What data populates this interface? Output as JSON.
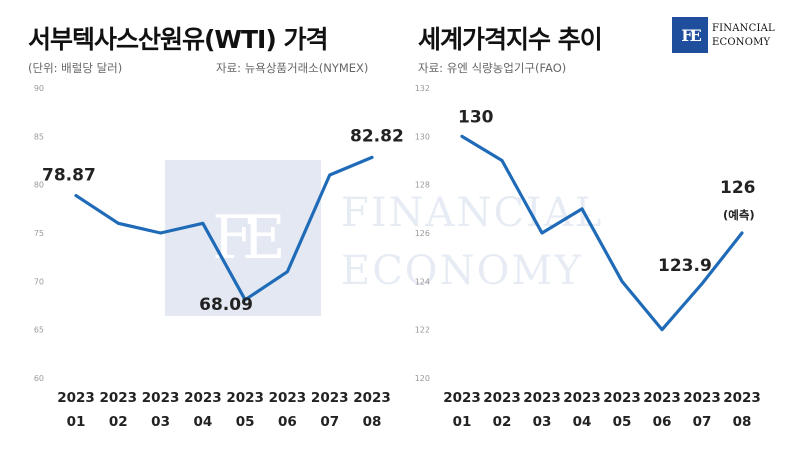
{
  "header": {
    "left_title": "서부텍사스산원유(WTI) 가격",
    "right_title": "세계가격지수 추이",
    "left_unit": "(단위: 배럴당 달러)",
    "left_source": "자료: 뉴욕상품거래소(NYMEX)",
    "right_source": "자료: 유엔 식량농업기구(FAO)"
  },
  "logo": {
    "mark": "FE",
    "line1": "FINANCIAL",
    "line2": "ECONOMY",
    "color": "#1f4e9c"
  },
  "watermark": {
    "mark": "FE",
    "line1": "FINANCIAL",
    "line2": "ECONOMY"
  },
  "chart_data": [
    {
      "type": "line",
      "categories": [
        [
          "2023",
          "01"
        ],
        [
          "2023",
          "02"
        ],
        [
          "2023",
          "03"
        ],
        [
          "2023",
          "04"
        ],
        [
          "2023",
          "05"
        ],
        [
          "2023",
          "06"
        ],
        [
          "2023",
          "07"
        ],
        [
          "2023",
          "08"
        ]
      ],
      "series": [
        {
          "values": [
            78.87,
            76.0,
            75.0,
            76.0,
            68.09,
            71.0,
            81.0,
            82.82
          ]
        }
      ],
      "yticks": [
        60,
        65,
        70,
        75,
        80,
        85,
        90
      ],
      "ylim": [
        60,
        90
      ],
      "data_labels": [
        {
          "index": 0,
          "text": "78.87"
        },
        {
          "index": 4,
          "text": "68.09"
        },
        {
          "index": 7,
          "text": "82.82"
        }
      ],
      "line_color": "#1f6bb8",
      "grid": false
    },
    {
      "type": "line",
      "categories": [
        [
          "2023",
          "01"
        ],
        [
          "2023",
          "02"
        ],
        [
          "2023",
          "03"
        ],
        [
          "2023",
          "04"
        ],
        [
          "2023",
          "05"
        ],
        [
          "2023",
          "06"
        ],
        [
          "2023",
          "07"
        ],
        [
          "2023",
          "08"
        ]
      ],
      "series": [
        {
          "values": [
            130,
            129,
            126,
            127,
            124,
            122,
            123.9,
            126
          ]
        }
      ],
      "yticks": [
        120,
        122,
        124,
        126,
        128,
        130,
        132
      ],
      "ylim": [
        120,
        132
      ],
      "data_labels": [
        {
          "index": 0,
          "text": "130"
        },
        {
          "index": 6,
          "text": "123.9"
        },
        {
          "index": 7,
          "text": "126",
          "note": "(예측)"
        }
      ],
      "line_color": "#1f6bb8",
      "grid": false
    }
  ]
}
